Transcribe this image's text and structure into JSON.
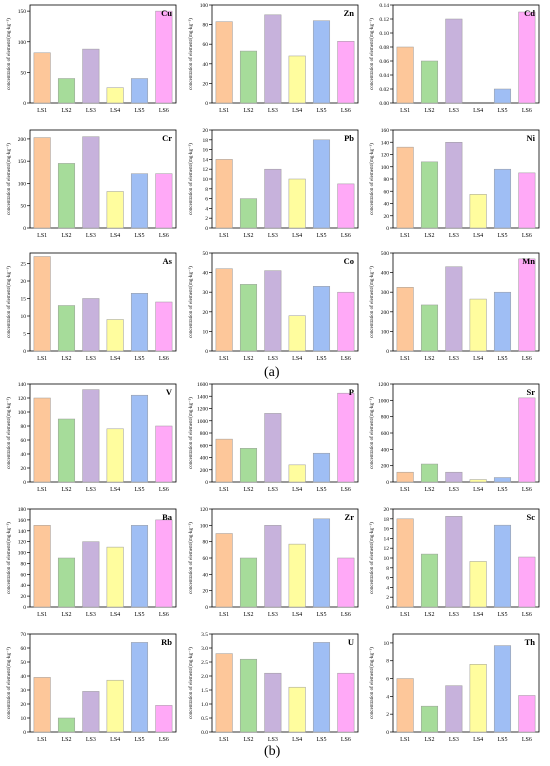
{
  "colors": [
    "#FDC79A",
    "#A6DC9A",
    "#C7B2DC",
    "#FFFD9E",
    "#9FBEF4",
    "#FFA9F7"
  ],
  "ylabel": "concentration of element/(mg·kg⁻¹)",
  "panel_labels": [
    "(a)",
    "(b)"
  ],
  "chart_data": [
    {
      "type": "bar",
      "title": "Cu",
      "categories": [
        "LS1",
        "LS2",
        "LS3",
        "LS4",
        "LS5",
        "LS6"
      ],
      "values": [
        82,
        40,
        88,
        25,
        40,
        150
      ],
      "ylim": [
        0,
        160
      ],
      "yticks": [
        "0",
        "50",
        "100",
        "150"
      ],
      "ytick_values": [
        0,
        50,
        100,
        150
      ]
    },
    {
      "type": "bar",
      "title": "Zn",
      "categories": [
        "LS1",
        "LS2",
        "LS3",
        "LS4",
        "LS5",
        "LS6"
      ],
      "values": [
        83,
        53,
        90,
        48,
        84,
        63
      ],
      "ylim": [
        0,
        100
      ],
      "yticks": [
        "0",
        "20",
        "40",
        "60",
        "80",
        "100"
      ],
      "ytick_values": [
        0,
        20,
        40,
        60,
        80,
        100
      ]
    },
    {
      "type": "bar",
      "title": "Cd",
      "categories": [
        "LS1",
        "LS2",
        "LS3",
        "LS4",
        "LS5",
        "LS6"
      ],
      "values": [
        0.08,
        0.06,
        0.12,
        0,
        0.02,
        0.13
      ],
      "ylim": [
        0,
        0.14
      ],
      "yticks": [
        "0.00",
        "0.02",
        "0.04",
        "0.06",
        "0.08",
        "0.10",
        "0.12",
        "0.14"
      ],
      "ytick_values": [
        0,
        0.02,
        0.04,
        0.06,
        0.08,
        0.1,
        0.12,
        0.14
      ]
    },
    {
      "type": "bar",
      "title": "Cr",
      "categories": [
        "LS1",
        "LS2",
        "LS3",
        "LS4",
        "LS5",
        "LS6"
      ],
      "values": [
        203,
        145,
        205,
        82,
        122,
        122
      ],
      "ylim": [
        0,
        220
      ],
      "yticks": [
        "0",
        "50",
        "100",
        "150",
        "200"
      ],
      "ytick_values": [
        0,
        50,
        100,
        150,
        200
      ]
    },
    {
      "type": "bar",
      "title": "Pb",
      "categories": [
        "LS1",
        "LS2",
        "LS3",
        "LS4",
        "LS5",
        "LS6"
      ],
      "values": [
        14,
        6,
        12,
        10,
        18,
        9
      ],
      "ylim": [
        0,
        20
      ],
      "yticks": [
        "0",
        "2",
        "4",
        "6",
        "8",
        "10",
        "12",
        "14",
        "16",
        "18",
        "20"
      ],
      "ytick_values": [
        0,
        2,
        4,
        6,
        8,
        10,
        12,
        14,
        16,
        18,
        20
      ]
    },
    {
      "type": "bar",
      "title": "Ni",
      "categories": [
        "LS1",
        "LS2",
        "LS3",
        "LS4",
        "LS5",
        "LS6"
      ],
      "values": [
        132,
        108,
        140,
        55,
        96,
        90
      ],
      "ylim": [
        0,
        160
      ],
      "yticks": [
        "0",
        "20",
        "40",
        "60",
        "80",
        "100",
        "120",
        "140",
        "160"
      ],
      "ytick_values": [
        0,
        20,
        40,
        60,
        80,
        100,
        120,
        140,
        160
      ]
    },
    {
      "type": "bar",
      "title": "As",
      "categories": [
        "LS1",
        "LS2",
        "LS3",
        "LS4",
        "LS5",
        "LS6"
      ],
      "values": [
        27,
        13,
        15,
        9,
        16.5,
        14
      ],
      "ylim": [
        0,
        28
      ],
      "yticks": [
        "0",
        "5",
        "10",
        "15",
        "20",
        "25"
      ],
      "ytick_values": [
        0,
        5,
        10,
        15,
        20,
        25
      ]
    },
    {
      "type": "bar",
      "title": "Co",
      "categories": [
        "LS1",
        "LS2",
        "LS3",
        "LS4",
        "LS5",
        "LS6"
      ],
      "values": [
        42,
        34,
        41,
        18,
        33,
        30
      ],
      "ylim": [
        0,
        50
      ],
      "yticks": [
        "0",
        "10",
        "20",
        "30",
        "40",
        "50"
      ],
      "ytick_values": [
        0,
        10,
        20,
        30,
        40,
        50
      ]
    },
    {
      "type": "bar",
      "title": "Mn",
      "categories": [
        "LS1",
        "LS2",
        "LS3",
        "LS4",
        "LS5",
        "LS6"
      ],
      "values": [
        325,
        235,
        430,
        265,
        300,
        470
      ],
      "ylim": [
        0,
        500
      ],
      "yticks": [
        "0",
        "100",
        "200",
        "300",
        "400",
        "500"
      ],
      "ytick_values": [
        0,
        100,
        200,
        300,
        400,
        500
      ]
    },
    {
      "type": "bar",
      "title": "V",
      "categories": [
        "LS1",
        "LS2",
        "LS3",
        "LS4",
        "LS5",
        "LS6"
      ],
      "values": [
        120,
        90,
        132,
        76,
        124,
        80
      ],
      "ylim": [
        0,
        140
      ],
      "yticks": [
        "0",
        "20",
        "40",
        "60",
        "80",
        "100",
        "120",
        "140"
      ],
      "ytick_values": [
        0,
        20,
        40,
        60,
        80,
        100,
        120,
        140
      ]
    },
    {
      "type": "bar",
      "title": "P",
      "categories": [
        "LS1",
        "LS2",
        "LS3",
        "LS4",
        "LS5",
        "LS6"
      ],
      "values": [
        700,
        550,
        1120,
        280,
        470,
        1450
      ],
      "ylim": [
        0,
        1600
      ],
      "yticks": [
        "0",
        "200",
        "400",
        "600",
        "800",
        "1000",
        "1200",
        "1400",
        "1600"
      ],
      "ytick_values": [
        0,
        200,
        400,
        600,
        800,
        1000,
        1200,
        1400,
        1600
      ]
    },
    {
      "type": "bar",
      "title": "Sr",
      "categories": [
        "LS1",
        "LS2",
        "LS3",
        "LS4",
        "LS5",
        "LS6"
      ],
      "values": [
        120,
        220,
        120,
        30,
        55,
        1030
      ],
      "ylim": [
        0,
        1200
      ],
      "yticks": [
        "0",
        "200",
        "400",
        "600",
        "800",
        "1000",
        "1200"
      ],
      "ytick_values": [
        0,
        200,
        400,
        600,
        800,
        1000,
        1200
      ]
    },
    {
      "type": "bar",
      "title": "Ba",
      "categories": [
        "LS1",
        "LS2",
        "LS3",
        "LS4",
        "LS5",
        "LS6"
      ],
      "values": [
        150,
        90,
        120,
        110,
        150,
        160
      ],
      "ylim": [
        0,
        180
      ],
      "yticks": [
        "0",
        "20",
        "40",
        "60",
        "80",
        "100",
        "120",
        "140",
        "160",
        "180"
      ],
      "ytick_values": [
        0,
        20,
        40,
        60,
        80,
        100,
        120,
        140,
        160,
        180
      ]
    },
    {
      "type": "bar",
      "title": "Zr",
      "categories": [
        "LS1",
        "LS2",
        "LS3",
        "LS4",
        "LS5",
        "LS6"
      ],
      "values": [
        90,
        60,
        100,
        77,
        108,
        60
      ],
      "ylim": [
        0,
        120
      ],
      "yticks": [
        "0",
        "20",
        "40",
        "60",
        "80",
        "100",
        "120"
      ],
      "ytick_values": [
        0,
        20,
        40,
        60,
        80,
        100,
        120
      ]
    },
    {
      "type": "bar",
      "title": "Sc",
      "categories": [
        "LS1",
        "LS2",
        "LS3",
        "LS4",
        "LS5",
        "LS6"
      ],
      "values": [
        18,
        10.8,
        18.5,
        9.3,
        16.7,
        10.2
      ],
      "ylim": [
        0,
        20
      ],
      "yticks": [
        "0",
        "2",
        "4",
        "6",
        "8",
        "10",
        "12",
        "14",
        "16",
        "18",
        "20"
      ],
      "ytick_values": [
        0,
        2,
        4,
        6,
        8,
        10,
        12,
        14,
        16,
        18,
        20
      ]
    },
    {
      "type": "bar",
      "title": "Rb",
      "categories": [
        "LS1",
        "LS2",
        "LS3",
        "LS4",
        "LS5",
        "LS6"
      ],
      "values": [
        39,
        10,
        29,
        37,
        64,
        19
      ],
      "ylim": [
        0,
        70
      ],
      "yticks": [
        "0",
        "10",
        "20",
        "30",
        "40",
        "50",
        "60",
        "70"
      ],
      "ytick_values": [
        0,
        10,
        20,
        30,
        40,
        50,
        60,
        70
      ]
    },
    {
      "type": "bar",
      "title": "U",
      "categories": [
        "LS1",
        "LS2",
        "LS3",
        "LS4",
        "LS5",
        "LS6"
      ],
      "values": [
        2.8,
        2.6,
        2.1,
        1.6,
        3.2,
        2.1
      ],
      "ylim": [
        0,
        3.5
      ],
      "yticks": [
        "0.0",
        "0.5",
        "1.0",
        "1.5",
        "2.0",
        "2.5",
        "3.0",
        "3.5"
      ],
      "ytick_values": [
        0,
        0.5,
        1.0,
        1.5,
        2.0,
        2.5,
        3.0,
        3.5
      ]
    },
    {
      "type": "bar",
      "title": "Th",
      "categories": [
        "LS1",
        "LS2",
        "LS3",
        "LS4",
        "LS5",
        "LS6"
      ],
      "values": [
        6,
        2.9,
        5.2,
        7.6,
        9.7,
        4.1
      ],
      "ylim": [
        0,
        11
      ],
      "yticks": [
        "0",
        "2",
        "4",
        "6",
        "8",
        "10"
      ],
      "ytick_values": [
        0,
        2,
        4,
        6,
        8,
        10
      ]
    }
  ]
}
